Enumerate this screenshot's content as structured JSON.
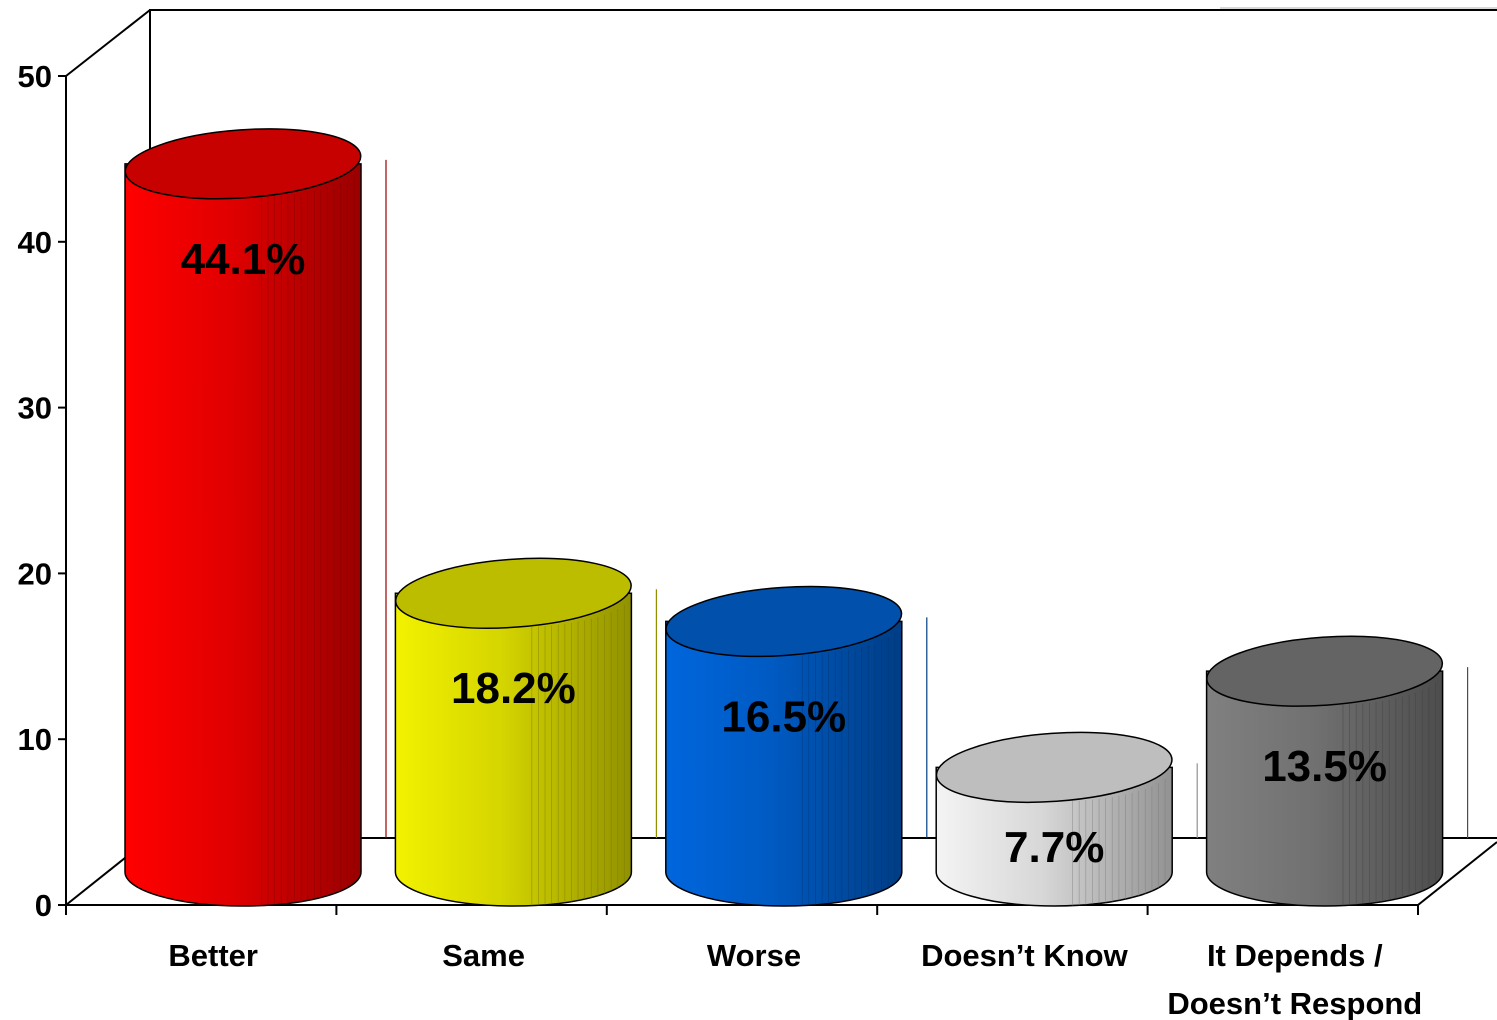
{
  "chart_data": {
    "type": "bar",
    "style": "3d-cylinder",
    "categories": [
      [
        "Better"
      ],
      [
        "Same"
      ],
      [
        "Worse"
      ],
      [
        "Doesn’t Know"
      ],
      [
        "It Depends /",
        "Doesn’t Respond"
      ]
    ],
    "values": [
      44.1,
      18.2,
      16.5,
      7.7,
      13.5
    ],
    "data_labels": [
      "44.1%",
      "18.2%",
      "16.5%",
      "7.7%",
      "13.5%"
    ],
    "colors": [
      "#ff0000",
      "#f2f200",
      "#0066dd",
      "#f4f4f4",
      "#808080"
    ],
    "y_ticks": [
      "0",
      "10",
      "20",
      "30",
      "40",
      "50"
    ],
    "ylim": [
      0,
      50
    ],
    "title": "",
    "xlabel": "",
    "ylabel": "",
    "grid": false,
    "legend": "none"
  }
}
